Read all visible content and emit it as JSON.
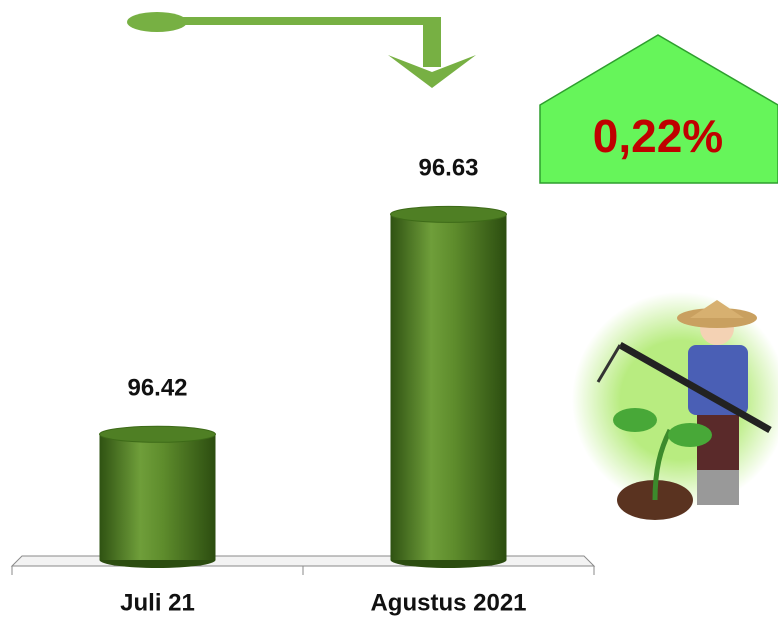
{
  "chart_data": {
    "type": "bar",
    "categories": [
      "Juli 21",
      "Agustus 2021"
    ],
    "values": [
      96.42,
      96.63
    ],
    "color": "#4f7f24",
    "ylim": [
      96.3,
      96.7
    ],
    "annotation": "0,22%"
  }
}
